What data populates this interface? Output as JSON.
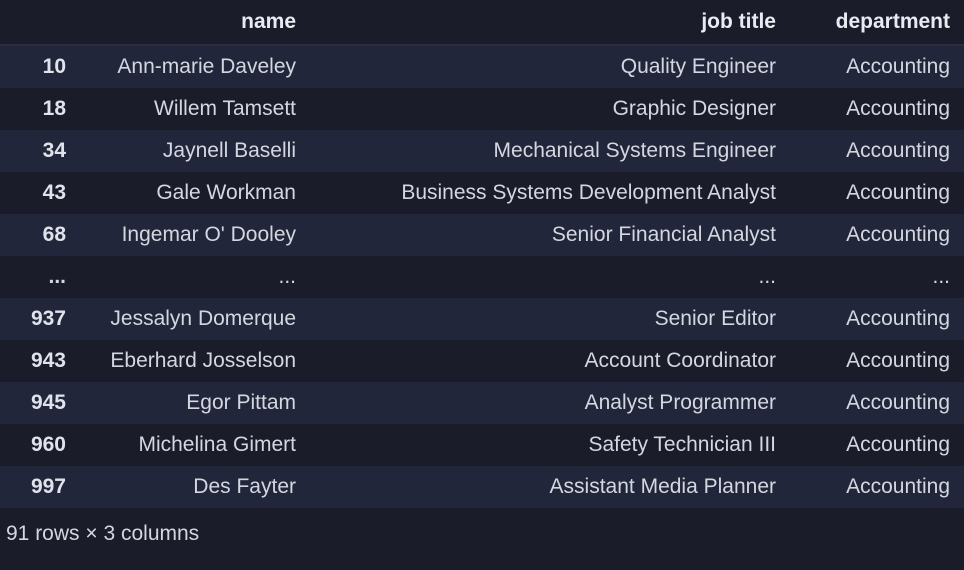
{
  "columns": {
    "index": "",
    "name": "name",
    "jobtitle": "job title",
    "department": "department"
  },
  "rows": [
    {
      "index": "10",
      "name": "Ann-marie Daveley",
      "jobtitle": "Quality Engineer",
      "department": "Accounting"
    },
    {
      "index": "18",
      "name": "Willem Tamsett",
      "jobtitle": "Graphic Designer",
      "department": "Accounting"
    },
    {
      "index": "34",
      "name": "Jaynell Baselli",
      "jobtitle": "Mechanical Systems Engineer",
      "department": "Accounting"
    },
    {
      "index": "43",
      "name": "Gale Workman",
      "jobtitle": "Business Systems Development Analyst",
      "department": "Accounting"
    },
    {
      "index": "68",
      "name": "Ingemar O' Dooley",
      "jobtitle": "Senior Financial Analyst",
      "department": "Accounting"
    },
    {
      "index": "...",
      "name": "...",
      "jobtitle": "...",
      "department": "..."
    },
    {
      "index": "937",
      "name": "Jessalyn Domerque",
      "jobtitle": "Senior Editor",
      "department": "Accounting"
    },
    {
      "index": "943",
      "name": "Eberhard Josselson",
      "jobtitle": "Account Coordinator",
      "department": "Accounting"
    },
    {
      "index": "945",
      "name": "Egor Pittam",
      "jobtitle": "Analyst Programmer",
      "department": "Accounting"
    },
    {
      "index": "960",
      "name": "Michelina Gimert",
      "jobtitle": "Safety Technician III",
      "department": "Accounting"
    },
    {
      "index": "997",
      "name": "Des Fayter",
      "jobtitle": "Assistant Media Planner",
      "department": "Accounting"
    }
  ],
  "footer": "91 rows × 3 columns",
  "style": {
    "background_color": "#1a1d29",
    "row_alt_color": "#22263a",
    "text_color": "#d4d7e0",
    "header_color": "#e8ebf2",
    "header_fontweight": 700,
    "fontsize": 21,
    "col_widths": {
      "index": 80,
      "name": 230,
      "jobtitle": 480,
      "department": 174
    },
    "text_align": "right"
  }
}
